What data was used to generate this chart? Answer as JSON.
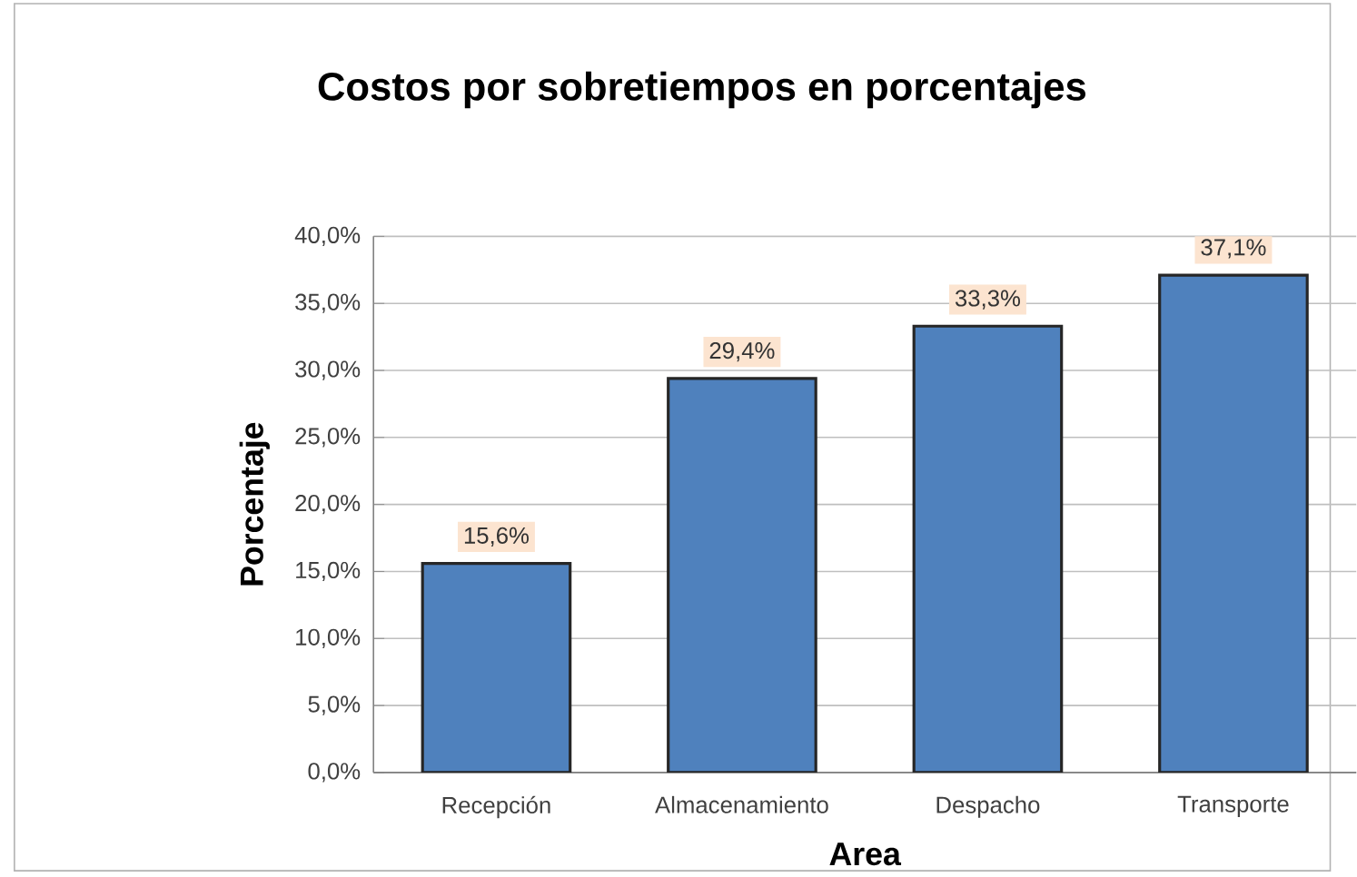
{
  "chart_data": {
    "type": "bar",
    "title": "Costos por sobretiempos en porcentajes",
    "xlabel": "Area",
    "ylabel": "Porcentaje",
    "categories": [
      "Recepción",
      "Almacenamiento",
      "Despacho",
      "Transporte"
    ],
    "values": [
      15.6,
      29.4,
      33.3,
      37.1
    ],
    "value_labels": [
      "15,6%",
      "29,4%",
      "33,3%",
      "37,1%"
    ],
    "color": "#4f81bd",
    "grid": "y",
    "ylim": [
      0,
      40
    ],
    "yticks": [
      {
        "value": 0,
        "label": "0,0%"
      },
      {
        "value": 5,
        "label": "5,0%"
      },
      {
        "value": 10,
        "label": "10,0%"
      },
      {
        "value": 15,
        "label": "15,0%"
      },
      {
        "value": 20,
        "label": "20,0%"
      },
      {
        "value": 25,
        "label": "25,0%"
      },
      {
        "value": 30,
        "label": "30,0%"
      },
      {
        "value": 35,
        "label": "35,0%"
      },
      {
        "value": 40,
        "label": "40,0%"
      }
    ]
  }
}
